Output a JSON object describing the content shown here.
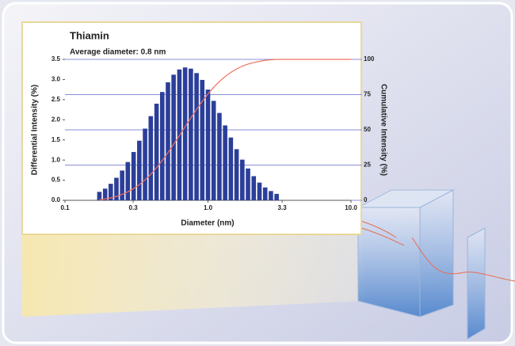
{
  "chart_data": {
    "type": "bar",
    "title": "Thiamin",
    "subtitle": "Average diameter: 0.8 nm",
    "x_label": "Diameter (nm)",
    "y_label": "Differential Intensity (%)",
    "y2_label": "Cumulative Intensity (%)",
    "x_log": true,
    "grid": true,
    "xlim": [
      0.1,
      10
    ],
    "xticks": [
      0.1,
      0.3,
      {
        "value": 1,
        "label": "1.0"
      },
      3.3,
      {
        "value": 10,
        "label": "10.0"
      }
    ],
    "ylim": [
      0,
      3.5
    ],
    "yticks": [
      {
        "value": 0,
        "label": "0.0"
      },
      0.5,
      {
        "value": 1,
        "label": "1.0"
      },
      1.5,
      {
        "value": 2,
        "label": "2.0"
      },
      2.5,
      {
        "value": 3,
        "label": "3.0"
      },
      3.5
    ],
    "y2lim": [
      0,
      100
    ],
    "y2ticks": [
      0,
      25,
      50,
      75,
      100
    ],
    "bars": {
      "color": "#2b3f99",
      "x": [
        0.174,
        0.191,
        0.209,
        0.229,
        0.251,
        0.275,
        0.302,
        0.331,
        0.363,
        0.398,
        0.437,
        0.479,
        0.525,
        0.575,
        0.631,
        0.692,
        0.759,
        0.832,
        0.912,
        1.0,
        1.096,
        1.202,
        1.318,
        1.445,
        1.585,
        1.738,
        1.905,
        2.089,
        2.291,
        2.512,
        2.754,
        3.02
      ],
      "values": [
        0.21,
        0.29,
        0.41,
        0.56,
        0.74,
        0.95,
        1.2,
        1.48,
        1.78,
        2.09,
        2.4,
        2.69,
        2.93,
        3.12,
        3.25,
        3.3,
        3.27,
        3.16,
        2.99,
        2.75,
        2.47,
        2.17,
        1.86,
        1.56,
        1.27,
        1.01,
        0.79,
        0.6,
        0.44,
        0.32,
        0.23,
        0.16
      ]
    },
    "cumulative": {
      "color": "#f07060",
      "axis": "y2",
      "x": [
        0.174,
        0.191,
        0.209,
        0.229,
        0.251,
        0.275,
        0.302,
        0.331,
        0.363,
        0.398,
        0.437,
        0.479,
        0.525,
        0.575,
        0.631,
        0.692,
        0.759,
        0.832,
        0.912,
        1.0,
        1.096,
        1.202,
        1.318,
        1.445,
        1.585,
        1.738,
        1.905,
        2.089,
        2.291,
        2.512,
        2.754,
        3.02,
        10
      ],
      "values": [
        0.4,
        1.0,
        1.7,
        2.8,
        4.2,
        6.0,
        8.3,
        11.1,
        14.5,
        18.5,
        23.1,
        28.2,
        33.8,
        39.8,
        45.9,
        52.2,
        58.5,
        64.5,
        70.2,
        75.4,
        80.2,
        84.3,
        87.8,
        90.8,
        93.2,
        95.2,
        96.7,
        97.8,
        98.6,
        99.3,
        99.7,
        100,
        100
      ]
    }
  }
}
